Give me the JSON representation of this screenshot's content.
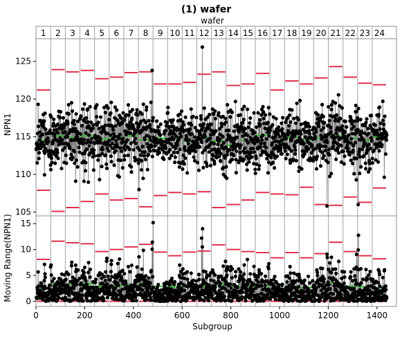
{
  "chart_data": {
    "type": "line",
    "title": "(1) wafer",
    "phase_title": "wafer",
    "phases": [
      "1",
      "2",
      "3",
      "4",
      "5",
      "6",
      "7",
      "8",
      "9",
      "10",
      "11",
      "12",
      "13",
      "14",
      "15",
      "16",
      "17",
      "18",
      "19",
      "20",
      "21",
      "22",
      "23",
      "24"
    ],
    "xlabel": "Subgroup",
    "xlim": [
      0,
      1480
    ],
    "x_ticks": [
      0,
      200,
      400,
      600,
      800,
      1000,
      1200,
      1400
    ],
    "grid": false,
    "points_per_phase": 60,
    "individuals": {
      "ylabel": "NPN1",
      "ylim": [
        104.5,
        128
      ],
      "y_ticks": [
        105,
        110,
        115,
        120,
        125
      ],
      "center_line": [
        114.5,
        115.1,
        114.9,
        115.1,
        114.7,
        114.9,
        115.1,
        114.6,
        114.8,
        114.8,
        114.4,
        114.9,
        114.4,
        113.9,
        114.5,
        115.2,
        114.3,
        114.9,
        114.6,
        114.8,
        115.1,
        114.8,
        114.5,
        115.0
      ],
      "ucl": [
        121.2,
        123.9,
        123.6,
        123.8,
        122.7,
        122.9,
        123.5,
        123.6,
        122.0,
        122.0,
        122.2,
        123.3,
        123.6,
        121.8,
        122.0,
        123.4,
        121.2,
        122.4,
        122.0,
        122.8,
        124.3,
        122.9,
        122.1,
        121.9
      ],
      "lcl": [
        107.9,
        105.1,
        105.6,
        106.4,
        107.4,
        106.6,
        106.8,
        105.7,
        107.2,
        107.6,
        107.4,
        107.7,
        105.6,
        106.0,
        106.6,
        107.6,
        107.4,
        107.3,
        108.3,
        106.0,
        105.9,
        107.0,
        106.3,
        108.2
      ],
      "notable_points": [
        {
          "x": 477,
          "y": 123.8
        },
        {
          "x": 683,
          "y": 126.9
        },
        {
          "x": 1195,
          "y": 105.8
        },
        {
          "x": 1323,
          "y": 106.0
        }
      ]
    },
    "moving_range": {
      "ylabel": "Moving Range(NPN1)",
      "ylim": [
        -1,
        16.5
      ],
      "y_ticks": [
        0,
        5,
        10,
        15
      ],
      "center_line": [
        2.5,
        3.5,
        3.3,
        3.4,
        2.9,
        3.0,
        3.2,
        3.4,
        2.9,
        2.8,
        2.9,
        2.9,
        3.2,
        3.0,
        2.9,
        2.9,
        2.5,
        2.9,
        2.6,
        2.9,
        3.5,
        2.9,
        2.8,
        2.6
      ],
      "ucl": [
        8.1,
        11.6,
        11.3,
        11.1,
        9.6,
        10.0,
        10.5,
        11.0,
        9.5,
        8.8,
        9.5,
        9.7,
        10.9,
        10.0,
        9.6,
        9.4,
        8.4,
        9.4,
        8.4,
        9.2,
        11.4,
        9.6,
        8.8,
        8.2
      ],
      "lcl": 0,
      "notable_points": [
        {
          "x": 481,
          "y": 15.2
        },
        {
          "x": 680,
          "y": 12.2
        },
        {
          "x": 1195,
          "y": 9.1
        }
      ]
    },
    "colors": {
      "series_line": "#808080",
      "markers": "#000000",
      "center_line": "#2eb82e",
      "control_limits": "#e0304a",
      "phase_divider": "#a0a0a0",
      "frame": "#8c8c8c"
    }
  }
}
